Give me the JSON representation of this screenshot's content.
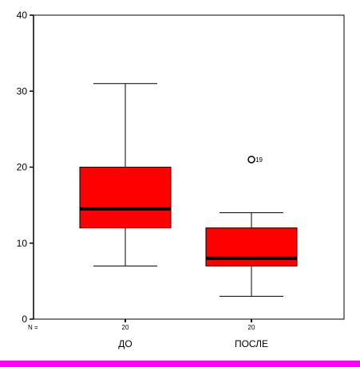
{
  "chart_data": {
    "type": "boxplot",
    "y_ticks": [
      0,
      10,
      20,
      30,
      40
    ],
    "ylim": [
      0,
      40
    ],
    "n_label": "N =",
    "categories": [
      "ДО",
      "ПОСЛЕ"
    ],
    "boxes": [
      {
        "category": "ДО",
        "n": "20",
        "whisker_low": 7,
        "q1": 12,
        "median": 14.5,
        "q3": 20,
        "whisker_high": 31,
        "outliers": []
      },
      {
        "category": "ПОСЛЕ",
        "n": "20",
        "whisker_low": 3,
        "q1": 7,
        "median": 8,
        "q3": 12,
        "whisker_high": 14,
        "outliers": [
          {
            "value": 21,
            "label": "19"
          }
        ]
      }
    ],
    "box_color": "#ff0000",
    "median_color": "#000000",
    "grid": false
  },
  "colors": {
    "bottom_bar": "#ff00ff"
  }
}
